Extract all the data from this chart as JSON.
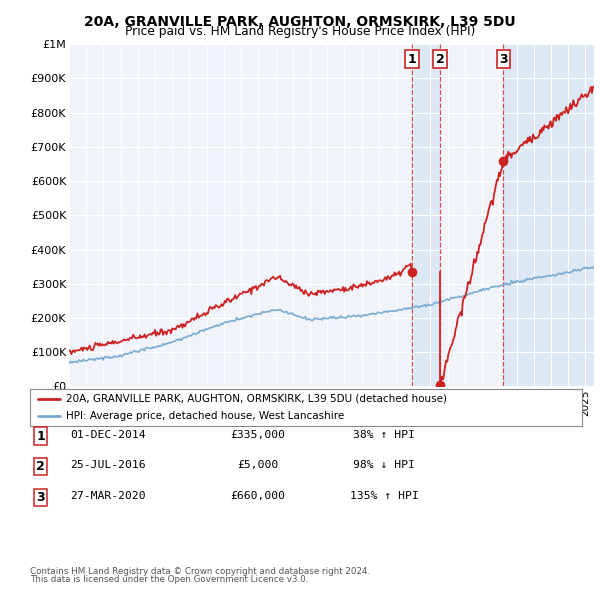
{
  "title": "20A, GRANVILLE PARK, AUGHTON, ORMSKIRK, L39 5DU",
  "subtitle": "Price paid vs. HM Land Registry's House Price Index (HPI)",
  "legend_label_red": "20A, GRANVILLE PARK, AUGHTON, ORMSKIRK, L39 5DU (detached house)",
  "legend_label_blue": "HPI: Average price, detached house, West Lancashire",
  "footer1": "Contains HM Land Registry data © Crown copyright and database right 2024.",
  "footer2": "This data is licensed under the Open Government Licence v3.0.",
  "transactions": [
    {
      "num": 1,
      "date": "01-DEC-2014",
      "price": 335000,
      "pct": "38%",
      "dir": "↑"
    },
    {
      "num": 2,
      "date": "25-JUL-2016",
      "price": 5000,
      "pct": "98%",
      "dir": "↓"
    },
    {
      "num": 3,
      "date": "27-MAR-2020",
      "price": 660000,
      "pct": "135%",
      "dir": "↑"
    }
  ],
  "transaction_dates_decimal": [
    2014.917,
    2016.558,
    2020.236
  ],
  "transaction_prices": [
    335000,
    5000,
    660000
  ],
  "ylim": [
    0,
    1000000
  ],
  "yticks": [
    0,
    100000,
    200000,
    300000,
    400000,
    500000,
    600000,
    700000,
    800000,
    900000,
    1000000
  ],
  "ytick_labels": [
    "£0",
    "£100K",
    "£200K",
    "£300K",
    "£400K",
    "£500K",
    "£600K",
    "£700K",
    "£800K",
    "£900K",
    "£1M"
  ],
  "xlim_start": 1995.0,
  "xlim_end": 2025.5,
  "bg_color_main": "#e8eef8",
  "bg_color_white": "#f0f4fa",
  "shaded_color": "#dde8f5",
  "red_color": "#cc2222",
  "blue_color": "#7aaad0",
  "shaded_region1_start": 2014.917,
  "shaded_region1_end": 2016.558,
  "shaded_region2_start": 2020.236,
  "shaded_region2_end": 2025.5
}
